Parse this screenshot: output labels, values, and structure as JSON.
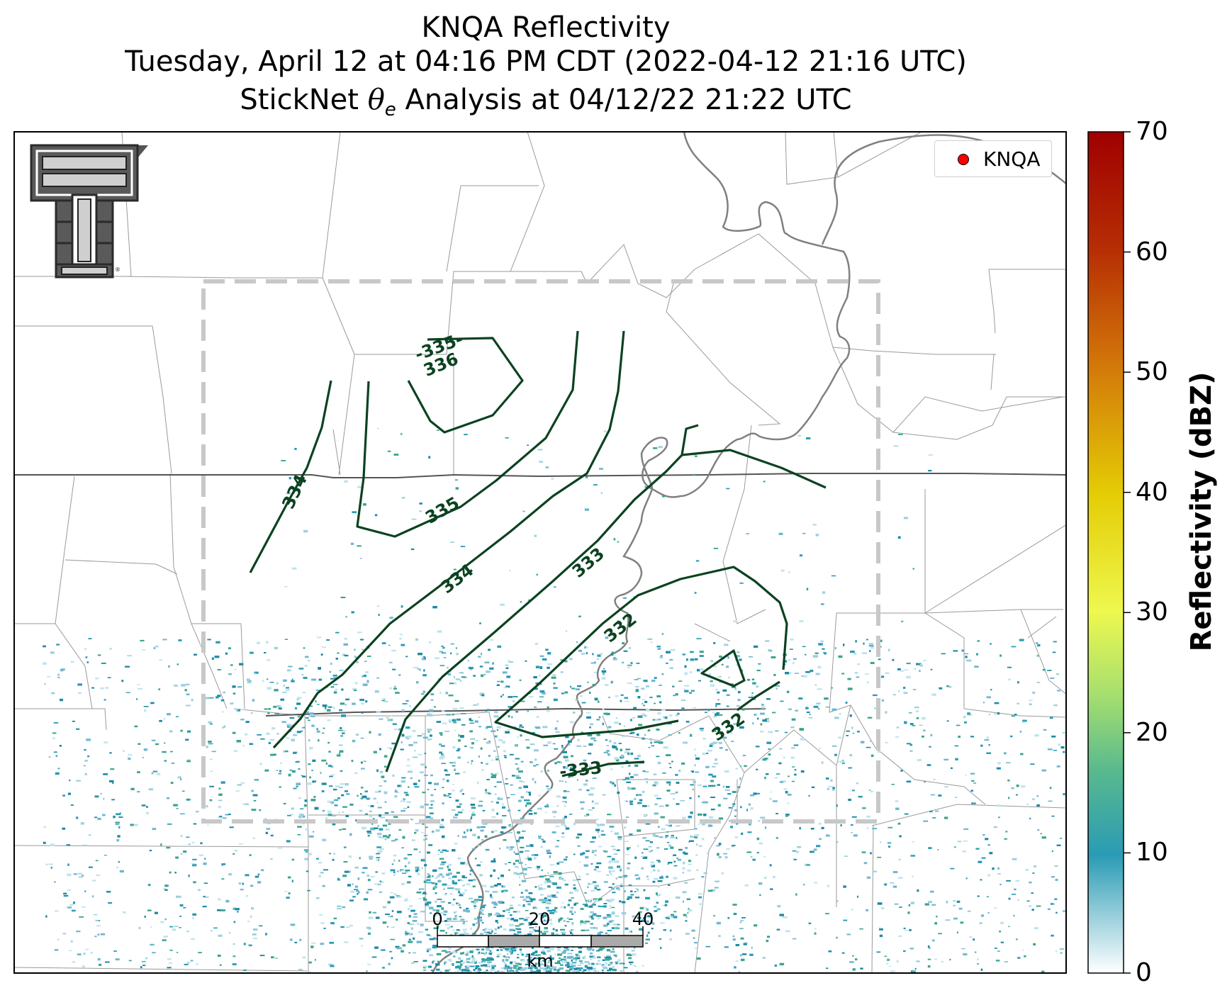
{
  "title": {
    "line1": "KNQA Reflectivity",
    "line2": "Tuesday, April 12 at 04:16 PM CDT (2022-04-12 21:16 UTC)",
    "line3_prefix": "StickNet ",
    "line3_theta": "θ",
    "line3_sub": "e",
    "line3_suffix": " Analysis at 04/12/22 21:22 UTC"
  },
  "legend": {
    "label": "KNQA",
    "marker_color": "#ff0000"
  },
  "colorbar": {
    "label": "Reflectivity (dBZ)",
    "ticks": [
      "0",
      "10",
      "20",
      "30",
      "40",
      "50",
      "60",
      "70"
    ],
    "range": [
      0,
      70
    ],
    "colors": [
      "#ffffff",
      "#2a9bb5",
      "#58b98e",
      "#a5df6f",
      "#eef84e",
      "#e4cc05",
      "#d3790a",
      "#b62e04",
      "#a00000"
    ]
  },
  "scale_bar": {
    "ticks": [
      "0",
      "20",
      "40"
    ],
    "unit": "km"
  },
  "contours": {
    "color": "#0b4220",
    "labels": [
      "-335-",
      "336",
      "334",
      "335",
      "334",
      "333",
      "332",
      "332",
      "-333"
    ]
  },
  "logo": {
    "name": "Texas Tech Double T"
  },
  "colors": {
    "analysis_box": "#c8c8c8",
    "county_lines": "#9a9a9a",
    "state_lines": "#555555",
    "river": "#808080",
    "echo": "#2a9bb5"
  }
}
